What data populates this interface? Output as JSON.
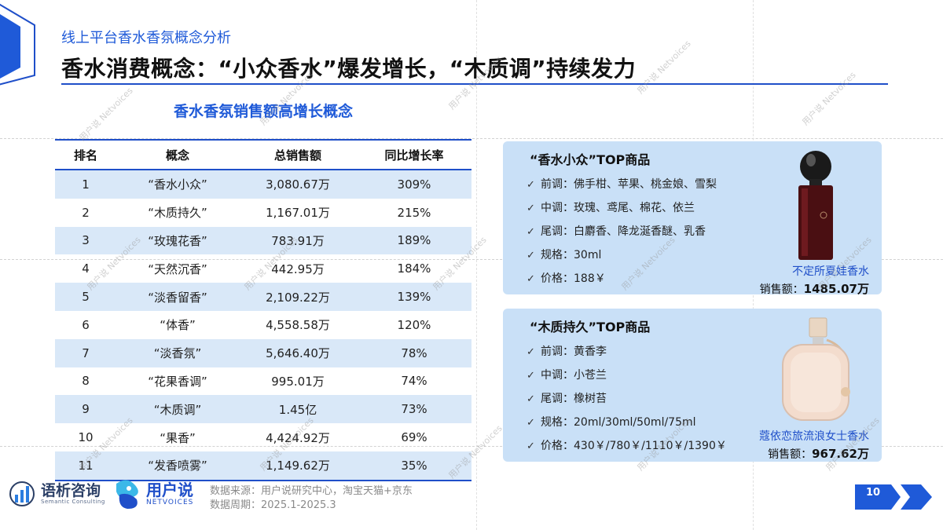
{
  "header": {
    "subtitle": "线上平台香水香氛概念分析",
    "title": "香水消费概念：“小众香水”爆发增长，“木质调”持续发力"
  },
  "table": {
    "title": "香水香氛销售额高增长概念",
    "columns": [
      "排名",
      "概念",
      "总销售额",
      "同比增长率"
    ],
    "rows": [
      [
        "1",
        "“香水小众”",
        "3,080.67万",
        "309%"
      ],
      [
        "2",
        "“木质持久”",
        "1,167.01万",
        "215%"
      ],
      [
        "3",
        "“玫瑰花香”",
        "783.91万",
        "189%"
      ],
      [
        "4",
        "“天然沉香”",
        "442.95万",
        "184%"
      ],
      [
        "5",
        "“淡香留香”",
        "2,109.22万",
        "139%"
      ],
      [
        "6",
        "“体香”",
        "4,558.58万",
        "120%"
      ],
      [
        "7",
        "“淡香氛”",
        "5,646.40万",
        "78%"
      ],
      [
        "8",
        "“花果香调”",
        "995.01万",
        "74%"
      ],
      [
        "9",
        "“木质调”",
        "1.45亿",
        "73%"
      ],
      [
        "10",
        "“果香”",
        "4,424.92万",
        "69%"
      ],
      [
        "11",
        "“发香喷雾”",
        "1,149.62万",
        "35%"
      ]
    ]
  },
  "cards": [
    {
      "title": "“香水小众”TOP商品",
      "items": [
        "前调：佛手柑、苹果、桃金娘、雪梨",
        "中调：玫瑰、鸢尾、棉花、依兰",
        "尾调：白麝香、降龙涎香醚、乳香",
        "规格：30ml",
        "价格：188￥"
      ],
      "product_name": "不定所夏娃香水",
      "sales_label": "销售额：",
      "sales_value": "1485.07万"
    },
    {
      "title": "“木质持久”TOP商品",
      "items": [
        "前调：黄香李",
        "中调：小苍兰",
        "尾调：橡树苔",
        "规格：20ml/30ml/50ml/75ml",
        "价格：430￥/780￥/1110￥/1390￥"
      ],
      "product_name": "蔻依恋旅流浪女士香水",
      "sales_label": "销售额：",
      "sales_value": "967.62万"
    }
  ],
  "footer": {
    "logo1_name": "语析咨询",
    "logo1_en": "Semantic Consulting",
    "logo2_name": "用户说",
    "logo2_en": "NETVOICES",
    "source": "数据来源：用户说研究中心，淘宝天猫+京东",
    "period": "数据周期：2025.1-2025.3",
    "page": "10"
  },
  "watermark": "用户说 Netvoices",
  "icons": {
    "check": "check-icon",
    "corner": "corner-frame-icon",
    "arrow": "next-page-arrow-icon"
  },
  "colors": {
    "accent": "#1f4fc9",
    "card_bg": "#c9e0f7",
    "row_stripe": "#d9e8f8"
  }
}
